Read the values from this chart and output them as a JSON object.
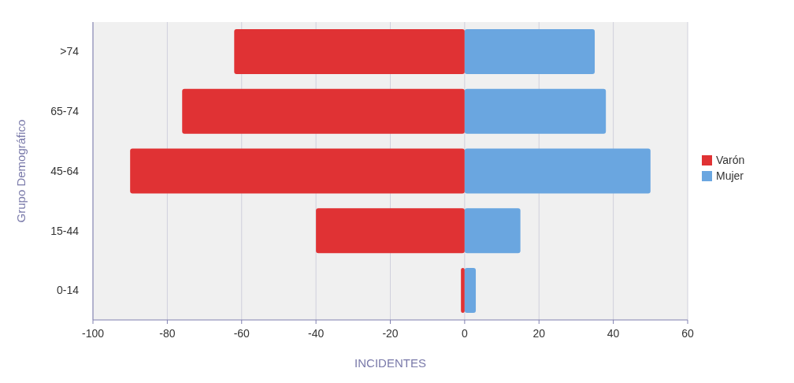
{
  "chart_data": {
    "type": "bar",
    "orientation": "horizontal",
    "stacked": true,
    "xlabel": "INCIDENTES",
    "ylabel": "Grupo Demográfico",
    "categories": [
      ">74",
      "65-74",
      "45-64",
      "15-44",
      "0-14"
    ],
    "series": [
      {
        "name": "Varón",
        "color": "#e03234",
        "values": [
          -62,
          -76,
          -90,
          -40,
          -1
        ]
      },
      {
        "name": "Mujer",
        "color": "#6aa6e0",
        "values": [
          35,
          38,
          50,
          15,
          3
        ]
      }
    ],
    "xlim": [
      -100,
      60
    ],
    "xticks": [
      -100,
      -80,
      -60,
      -40,
      -20,
      0,
      20,
      40,
      60
    ],
    "grid": "x",
    "legend": "right"
  }
}
